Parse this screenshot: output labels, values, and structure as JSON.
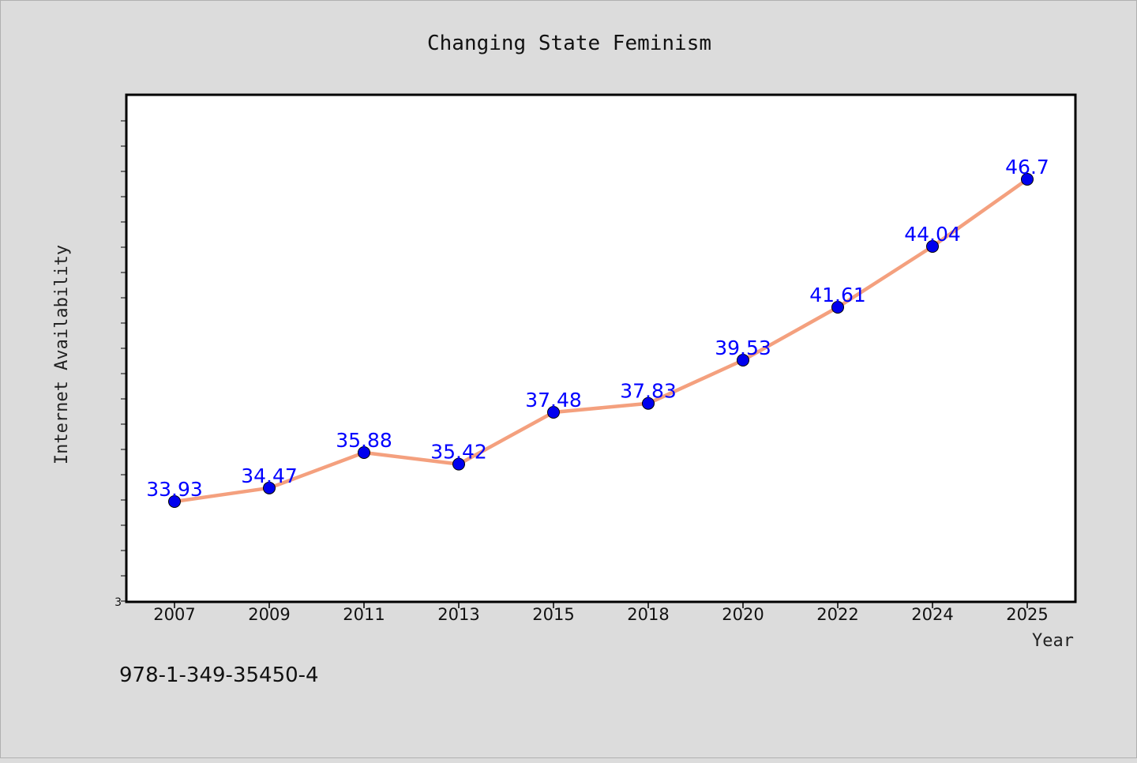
{
  "chart_data": {
    "type": "line",
    "title": "Changing State Feminism",
    "xlabel": "Year",
    "ylabel": "Internet Availability",
    "categories": [
      "2007",
      "2009",
      "2011",
      "2013",
      "2015",
      "2018",
      "2020",
      "2022",
      "2024",
      "2025"
    ],
    "series": [
      {
        "values": [
          33.93,
          34.47,
          35.88,
          35.42,
          37.48,
          37.83,
          39.53,
          41.61,
          44.04,
          46.7
        ],
        "labels": [
          "33.93",
          "34.47",
          "35.88",
          "35.42",
          "37.48",
          "37.83",
          "39.53",
          "41.61",
          "44.04",
          "46.7"
        ],
        "line_color": "#f4a07e",
        "marker_color": "#0000ee"
      }
    ],
    "y_tick_labels": [
      "3"
    ],
    "ylim": [
      3,
      50
    ],
    "grid": false,
    "legend": "none"
  },
  "footer_text": "978-1-349-35450-4",
  "colors": {
    "background": "#dcdcdc",
    "plot_background": "#ffffff",
    "data_label": "#0000ff"
  }
}
